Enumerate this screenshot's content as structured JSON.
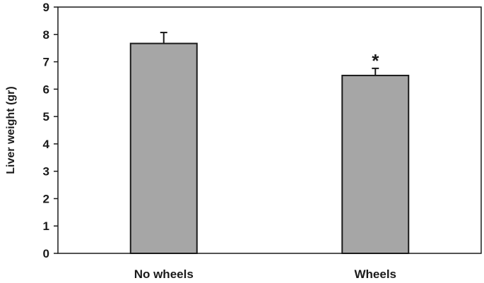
{
  "chart_data": {
    "type": "bar",
    "categories": [
      "No wheels",
      "Wheels"
    ],
    "values": [
      7.67,
      6.5
    ],
    "error": [
      0.4,
      0.26
    ],
    "annotations": [
      "",
      "*"
    ],
    "ylabel": "Liver weight (gr)",
    "xlabel": "",
    "ylim": [
      0,
      9
    ],
    "yticks": [
      "0",
      "1",
      "2",
      "3",
      "4",
      "5",
      "6",
      "7",
      "8",
      "9"
    ],
    "bar_color": "#a6a6a6",
    "grid": false
  }
}
